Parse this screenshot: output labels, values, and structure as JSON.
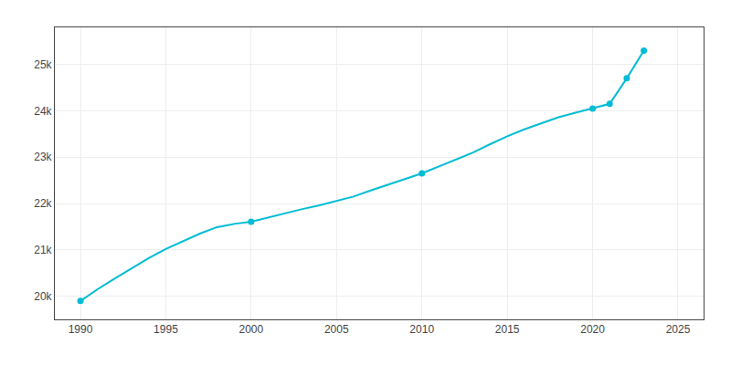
{
  "chart_data": {
    "type": "line",
    "series": [
      {
        "type": "line",
        "color": "#00BCD4",
        "line_style": "solid",
        "x": [
          1990,
          1991,
          1992,
          1993,
          1994,
          1995,
          1996,
          1997,
          1998,
          1999,
          2000,
          2001,
          2002,
          2003,
          2004,
          2005,
          2006,
          2007,
          2008,
          2009,
          2010,
          2011,
          2012,
          2013,
          2014,
          2015,
          2016,
          2017,
          2018,
          2019,
          2020,
          2021,
          2022,
          2023
        ],
        "values": [
          19897,
          20150,
          20380,
          20600,
          20820,
          21020,
          21180,
          21350,
          21490,
          21560,
          21608,
          21700,
          21800,
          21880,
          21960,
          22050,
          22150,
          22280,
          22400,
          22520,
          22650,
          22800,
          22950,
          23100,
          23280,
          23450,
          23600,
          23730,
          23860,
          23960,
          24050,
          24150,
          24700,
          25300
        ]
      },
      {
        "type": "scatter",
        "color": "#00BCD4",
        "marker": "circle",
        "x": [
          1990,
          2000,
          2010,
          2020,
          2021,
          2022,
          2023
        ],
        "values": [
          19897,
          21608,
          22650,
          24050,
          24150,
          24700,
          25300
        ]
      }
    ],
    "xlim": [
      1988.5,
      2026.5
    ],
    "xticks": [
      1990,
      1995,
      2000,
      2005,
      2010,
      2015,
      2020,
      2025
    ],
    "ylim": [
      19500,
      25800
    ],
    "yticks": [
      {
        "value": 20000,
        "label": "20k"
      },
      {
        "value": 21000,
        "label": "21k"
      },
      {
        "value": 22000,
        "label": "22k"
      },
      {
        "value": 23000,
        "label": "23k"
      },
      {
        "value": 24000,
        "label": "24k"
      },
      {
        "value": 25000,
        "label": "25k"
      }
    ],
    "grid": true
  }
}
